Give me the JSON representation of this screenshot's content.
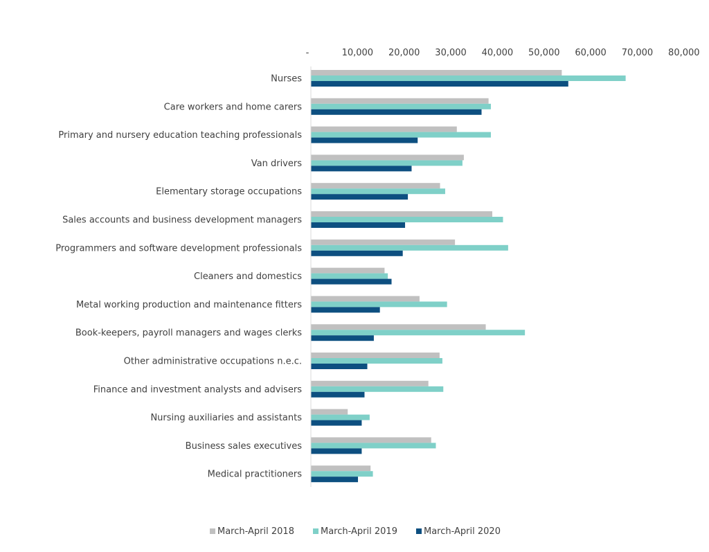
{
  "chart_data": {
    "type": "bar",
    "orientation": "horizontal",
    "title": "",
    "xlabel": "",
    "ylabel": "",
    "xlim": [
      0,
      80000
    ],
    "x_ticks": [
      0,
      10000,
      20000,
      30000,
      40000,
      50000,
      60000,
      70000,
      80000
    ],
    "x_tick_labels": [
      "-",
      "10,000",
      "20,000",
      "30,000",
      "40,000",
      "50,000",
      "60,000",
      "70,000",
      "80,000"
    ],
    "x_axis_position": "top",
    "grid": false,
    "legend_position": "bottom",
    "categories": [
      "Nurses",
      "Care workers and home carers",
      "Primary and nursery education teaching professionals",
      "Van drivers",
      "Elementary storage occupations",
      "Sales accounts and business development managers",
      "Programmers and software development professionals",
      "Cleaners and domestics",
      "Metal working production and maintenance fitters",
      "Book-keepers, payroll managers and wages clerks",
      "Other administrative occupations n.e.c.",
      "Finance and investment analysts and advisers",
      "Nursing auxiliaries and assistants",
      "Business sales executives",
      "Medical practitioners"
    ],
    "series": [
      {
        "name": "March-April 2018",
        "color": "#c0c0c0",
        "values": [
          53800,
          38100,
          31300,
          32800,
          27700,
          38900,
          30900,
          15800,
          23300,
          37500,
          27600,
          25200,
          7900,
          25800,
          12800
        ]
      },
      {
        "name": "March-April 2019",
        "color": "#7fd0c8",
        "values": [
          67500,
          38600,
          38600,
          32500,
          28800,
          41200,
          42300,
          16500,
          29200,
          45900,
          28200,
          28400,
          12600,
          26800,
          13300
        ]
      },
      {
        "name": "March-April 2020",
        "color": "#0d4f80",
        "values": [
          55200,
          36600,
          22900,
          21600,
          20800,
          20200,
          19700,
          17300,
          14800,
          13500,
          12100,
          11500,
          10900,
          10900,
          10100
        ]
      }
    ]
  }
}
